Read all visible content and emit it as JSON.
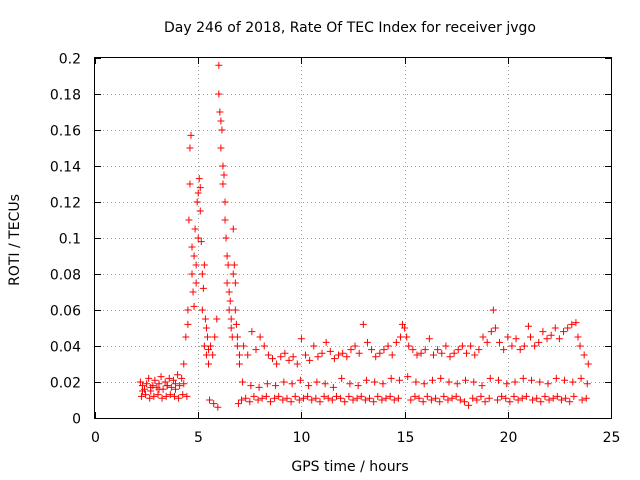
{
  "chart_data": {
    "type": "scatter",
    "title": "Day 246 of 2018, Rate Of TEC Index for receiver jvgo",
    "xlabel": "GPS time / hours",
    "ylabel": "ROTI / TECUs",
    "xlim": [
      0,
      25
    ],
    "ylim": [
      0,
      0.2
    ],
    "x_ticks": [
      "0",
      "5",
      "10",
      "15",
      "20",
      "25"
    ],
    "y_ticks": [
      "0",
      "0.02",
      "0.04",
      "0.06",
      "0.08",
      "0.1",
      "0.12",
      "0.14",
      "0.16",
      "0.18",
      "0.2"
    ],
    "grid": true,
    "marker": "+",
    "series_color": "#ff0000",
    "series": [
      {
        "name": "ROTI",
        "x": [
          2.2,
          2.3,
          2.4,
          2.5,
          2.6,
          2.7,
          2.8,
          2.9,
          3.0,
          3.1,
          3.2,
          3.3,
          3.4,
          3.5,
          3.6,
          3.7,
          3.8,
          3.9,
          4.0,
          4.1,
          4.2,
          4.3,
          4.4,
          4.5,
          4.5,
          4.55,
          4.6,
          4.6,
          4.65,
          4.7,
          4.7,
          4.75,
          4.8,
          4.8,
          4.85,
          4.9,
          4.9,
          4.95,
          5.0,
          5.0,
          5.05,
          5.1,
          5.1,
          5.15,
          5.2,
          5.2,
          5.25,
          5.3,
          5.3,
          5.35,
          5.4,
          5.4,
          5.45,
          5.5,
          5.5,
          5.6,
          5.7,
          5.8,
          5.9,
          6.0,
          6.0,
          6.05,
          6.1,
          6.1,
          6.15,
          6.2,
          6.2,
          6.25,
          6.3,
          6.3,
          6.35,
          6.4,
          6.4,
          6.45,
          6.5,
          6.5,
          6.55,
          6.6,
          6.6,
          6.65,
          6.7,
          6.7,
          6.75,
          6.8,
          6.8,
          6.85,
          6.9,
          6.9,
          7.0,
          7.0,
          7.2,
          7.4,
          7.6,
          7.8,
          8.0,
          8.2,
          8.4,
          8.6,
          8.8,
          9.0,
          9.2,
          9.4,
          9.6,
          9.8,
          10.0,
          10.2,
          10.4,
          10.6,
          10.8,
          11.0,
          11.2,
          11.4,
          11.6,
          11.8,
          12.0,
          12.2,
          12.4,
          12.6,
          12.8,
          13.0,
          13.2,
          13.4,
          13.6,
          13.8,
          14.0,
          14.2,
          14.4,
          14.6,
          14.8,
          14.9,
          15.0,
          15.1,
          15.2,
          15.4,
          15.6,
          15.8,
          16.0,
          16.2,
          16.4,
          16.6,
          16.8,
          17.0,
          17.2,
          17.4,
          17.6,
          17.8,
          18.0,
          18.2,
          18.4,
          18.6,
          18.8,
          19.0,
          19.2,
          19.3,
          19.4,
          19.6,
          19.8,
          20.0,
          20.2,
          20.4,
          20.6,
          20.8,
          21.0,
          21.1,
          21.3,
          21.5,
          21.7,
          21.9,
          22.1,
          22.3,
          22.5,
          22.7,
          22.9,
          23.1,
          23.3,
          23.4,
          23.5,
          23.7,
          23.9,
          2.25,
          2.45,
          2.65,
          2.85,
          3.05,
          3.25,
          3.45,
          3.65,
          3.85,
          4.05,
          4.25,
          4.45,
          5.55,
          5.75,
          5.95,
          6.95,
          7.1,
          7.3,
          7.5,
          7.7,
          7.9,
          8.1,
          8.3,
          8.5,
          8.7,
          8.9,
          9.1,
          9.3,
          9.5,
          9.7,
          9.9,
          10.1,
          10.3,
          10.5,
          10.7,
          10.9,
          11.1,
          11.3,
          11.5,
          11.7,
          11.9,
          12.1,
          12.3,
          12.5,
          12.7,
          12.9,
          13.1,
          13.3,
          13.5,
          13.7,
          13.9,
          14.1,
          14.3,
          14.5,
          14.7,
          15.3,
          15.5,
          15.7,
          15.9,
          16.1,
          16.3,
          16.5,
          16.7,
          16.9,
          17.1,
          17.3,
          17.5,
          17.7,
          17.9,
          18.1,
          18.3,
          18.5,
          18.7,
          18.9,
          19.1,
          19.5,
          19.7,
          19.9,
          20.1,
          20.3,
          20.5,
          20.7,
          20.9,
          21.2,
          21.4,
          21.6,
          21.8,
          22.0,
          22.2,
          22.4,
          22.6,
          22.8,
          23.0,
          23.2,
          23.6,
          23.8,
          2.3,
          2.7,
          3.1,
          3.5,
          3.9,
          4.3,
          7.15,
          7.55,
          7.95,
          8.35,
          8.75,
          9.15,
          9.55,
          9.95,
          10.35,
          10.75,
          11.15,
          11.55,
          11.95,
          12.35,
          12.75,
          13.15,
          13.55,
          13.95,
          14.35,
          14.75,
          15.15,
          15.55,
          15.95,
          16.35,
          16.75,
          17.15,
          17.55,
          17.95,
          18.35,
          18.75,
          19.15,
          19.55,
          19.95,
          20.35,
          20.75,
          21.15,
          21.55,
          21.95,
          22.35,
          22.75,
          23.15,
          23.55,
          23.85
        ],
        "y": [
          0.02,
          0.018,
          0.016,
          0.019,
          0.022,
          0.015,
          0.018,
          0.021,
          0.017,
          0.019,
          0.023,
          0.016,
          0.02,
          0.018,
          0.022,
          0.017,
          0.021,
          0.019,
          0.024,
          0.018,
          0.022,
          0.03,
          0.045,
          0.06,
          0.052,
          0.11,
          0.13,
          0.15,
          0.157,
          0.08,
          0.095,
          0.07,
          0.09,
          0.062,
          0.105,
          0.075,
          0.085,
          0.12,
          0.125,
          0.1,
          0.133,
          0.128,
          0.115,
          0.098,
          0.08,
          0.06,
          0.072,
          0.085,
          0.04,
          0.055,
          0.05,
          0.035,
          0.045,
          0.03,
          0.038,
          0.04,
          0.035,
          0.045,
          0.055,
          0.196,
          0.18,
          0.17,
          0.165,
          0.15,
          0.16,
          0.14,
          0.13,
          0.135,
          0.12,
          0.11,
          0.1,
          0.09,
          0.075,
          0.085,
          0.07,
          0.06,
          0.065,
          0.05,
          0.055,
          0.045,
          0.105,
          0.08,
          0.085,
          0.075,
          0.06,
          0.052,
          0.045,
          0.04,
          0.035,
          0.03,
          0.04,
          0.035,
          0.048,
          0.038,
          0.045,
          0.04,
          0.035,
          0.033,
          0.03,
          0.034,
          0.036,
          0.032,
          0.034,
          0.03,
          0.044,
          0.035,
          0.032,
          0.04,
          0.034,
          0.036,
          0.042,
          0.037,
          0.033,
          0.035,
          0.036,
          0.034,
          0.038,
          0.04,
          0.036,
          0.052,
          0.042,
          0.038,
          0.034,
          0.036,
          0.038,
          0.04,
          0.035,
          0.042,
          0.045,
          0.052,
          0.05,
          0.045,
          0.04,
          0.038,
          0.035,
          0.036,
          0.038,
          0.044,
          0.035,
          0.038,
          0.036,
          0.04,
          0.034,
          0.036,
          0.038,
          0.04,
          0.036,
          0.04,
          0.035,
          0.038,
          0.045,
          0.042,
          0.048,
          0.06,
          0.05,
          0.042,
          0.038,
          0.045,
          0.04,
          0.044,
          0.038,
          0.04,
          0.051,
          0.045,
          0.04,
          0.042,
          0.048,
          0.044,
          0.046,
          0.05,
          0.044,
          0.048,
          0.05,
          0.052,
          0.053,
          0.045,
          0.04,
          0.035,
          0.03,
          0.012,
          0.013,
          0.011,
          0.012,
          0.013,
          0.011,
          0.012,
          0.013,
          0.012,
          0.011,
          0.013,
          0.012,
          0.01,
          0.008,
          0.006,
          0.008,
          0.01,
          0.011,
          0.009,
          0.012,
          0.01,
          0.011,
          0.012,
          0.009,
          0.011,
          0.012,
          0.01,
          0.011,
          0.009,
          0.012,
          0.01,
          0.011,
          0.012,
          0.01,
          0.011,
          0.009,
          0.012,
          0.011,
          0.01,
          0.012,
          0.011,
          0.009,
          0.012,
          0.01,
          0.011,
          0.012,
          0.01,
          0.011,
          0.009,
          0.012,
          0.01,
          0.011,
          0.012,
          0.01,
          0.011,
          0.01,
          0.012,
          0.011,
          0.009,
          0.012,
          0.01,
          0.011,
          0.009,
          0.012,
          0.01,
          0.011,
          0.012,
          0.01,
          0.009,
          0.007,
          0.011,
          0.01,
          0.012,
          0.009,
          0.011,
          0.01,
          0.012,
          0.011,
          0.009,
          0.012,
          0.01,
          0.011,
          0.012,
          0.01,
          0.011,
          0.009,
          0.012,
          0.01,
          0.011,
          0.012,
          0.01,
          0.011,
          0.009,
          0.012,
          0.01,
          0.011,
          0.015,
          0.017,
          0.016,
          0.018,
          0.016,
          0.019,
          0.02,
          0.018,
          0.017,
          0.019,
          0.018,
          0.02,
          0.019,
          0.021,
          0.018,
          0.02,
          0.019,
          0.017,
          0.022,
          0.019,
          0.018,
          0.021,
          0.02,
          0.019,
          0.022,
          0.021,
          0.023,
          0.02,
          0.019,
          0.021,
          0.022,
          0.02,
          0.019,
          0.021,
          0.02,
          0.018,
          0.022,
          0.021,
          0.019,
          0.02,
          0.022,
          0.021,
          0.02,
          0.019,
          0.022,
          0.021,
          0.02,
          0.022,
          0.019
        ]
      }
    ]
  }
}
